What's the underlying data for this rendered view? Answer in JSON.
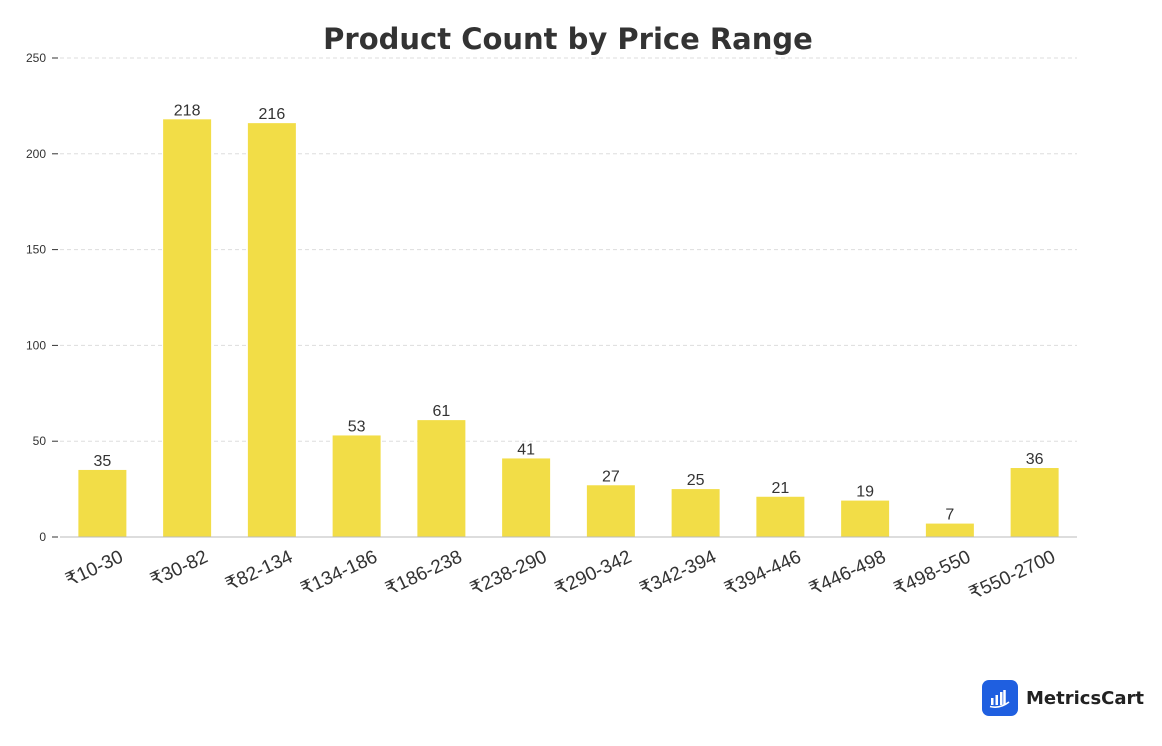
{
  "chart_data": {
    "type": "bar",
    "title": "Product Count by Price Range",
    "categories": [
      "₹10-30",
      "₹30-82",
      "₹82-134",
      "₹134-186",
      "₹186-238",
      "₹238-290",
      "₹290-342",
      "₹342-394",
      "₹394-446",
      "₹446-498",
      "₹498-550",
      "₹550-2700"
    ],
    "values": [
      35,
      218,
      216,
      53,
      61,
      41,
      27,
      25,
      21,
      19,
      7,
      36
    ],
    "yticks": [
      0,
      50,
      100,
      150,
      200,
      250
    ],
    "ylim": [
      0,
      250
    ],
    "grid": true,
    "legend": "none",
    "bar_color": "#f2dd47"
  },
  "brand": {
    "name": "MetricsCart",
    "icon": "bar-chart-logo-icon",
    "icon_color": "#1f5fe0"
  }
}
